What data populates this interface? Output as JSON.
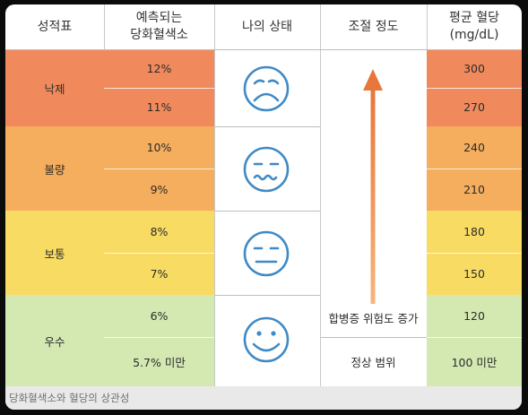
{
  "headers": {
    "grade": "성적표",
    "hba1c": "예측되는\n당화혈색소",
    "state": "나의 상태",
    "control": "조절 정도",
    "glucose": "평균 혈당\n(mg/dL)"
  },
  "groups": [
    {
      "label": "낙제",
      "color": "#f08a5c",
      "face": "sad-face-icon",
      "hba1c": [
        "12%",
        "11%"
      ],
      "glucose": [
        "300",
        "270"
      ]
    },
    {
      "label": "불량",
      "color": "#f5ad5e",
      "face": "wavy-mouth-face-icon",
      "hba1c": [
        "10%",
        "9%"
      ],
      "glucose": [
        "240",
        "210"
      ]
    },
    {
      "label": "보통",
      "color": "#f7db63",
      "face": "neutral-face-icon",
      "hba1c": [
        "8%",
        "7%"
      ],
      "glucose": [
        "180",
        "150"
      ]
    },
    {
      "label": "우수",
      "color": "#d3e9b1",
      "face": "smile-face-icon",
      "hba1c": [
        "6%",
        "5.7% 미만"
      ],
      "glucose": [
        "120",
        "100 미만"
      ]
    }
  ],
  "control": {
    "risk_label": "합병증 위험도 증가",
    "normal_label": "정상 범위",
    "arrow_color": "#e8763a"
  },
  "caption": "당화혈색소와 혈당의 상관성",
  "colors": {
    "face_stroke": "#3f8ac6",
    "separator": "#c8c8c8",
    "caption_bg": "#e9e9e9"
  }
}
